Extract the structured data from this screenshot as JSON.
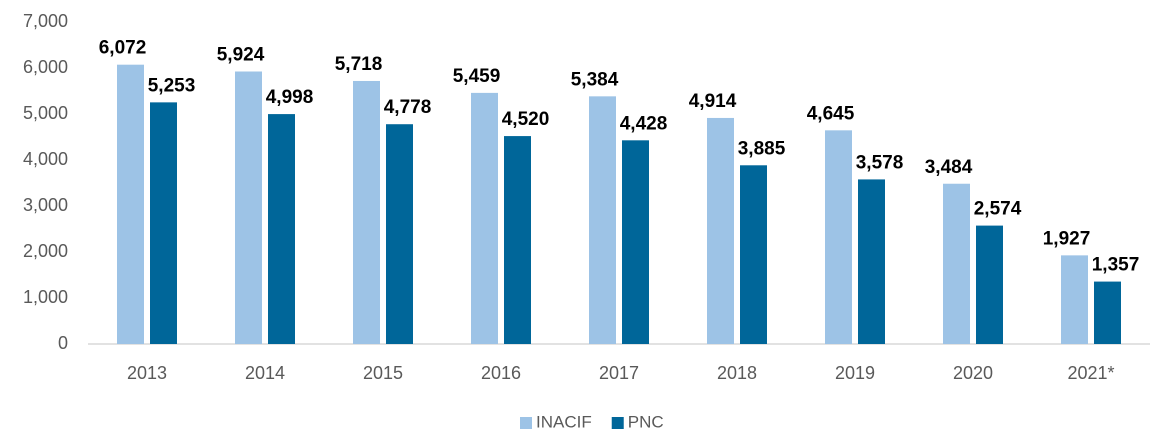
{
  "chart_data": {
    "type": "bar",
    "categories": [
      "2013",
      "2014",
      "2015",
      "2016",
      "2017",
      "2018",
      "2019",
      "2020",
      "2021*"
    ],
    "series": [
      {
        "name": "INACIF",
        "color": "#9dc3e6",
        "values": [
          6072,
          5924,
          5718,
          5459,
          5384,
          4914,
          4645,
          3484,
          1927
        ],
        "value_labels": [
          "6,072",
          "5,924",
          "5,718",
          "5,459",
          "5,384",
          "4,914",
          "4,645",
          "3,484",
          "1,927"
        ]
      },
      {
        "name": "PNC",
        "color": "#006699",
        "values": [
          5253,
          4998,
          4778,
          4520,
          4428,
          3885,
          3578,
          2574,
          1357
        ],
        "value_labels": [
          "5,253",
          "4,998",
          "4,778",
          "4,520",
          "4,428",
          "3,885",
          "3,578",
          "2,574",
          "1,357"
        ]
      }
    ],
    "ylim": [
      0,
      7000
    ],
    "yticks": [
      0,
      {
        "value": 1000,
        "label": "1,000"
      },
      {
        "value": 2000,
        "label": "2,000"
      },
      {
        "value": 3000,
        "label": "3,000"
      },
      {
        "value": 4000,
        "label": "4,000"
      },
      {
        "value": 5000,
        "label": "5,000"
      },
      {
        "value": 6000,
        "label": "6,000"
      },
      {
        "value": 7000,
        "label": "7,000"
      }
    ],
    "grid": false,
    "legend": "bottom"
  }
}
